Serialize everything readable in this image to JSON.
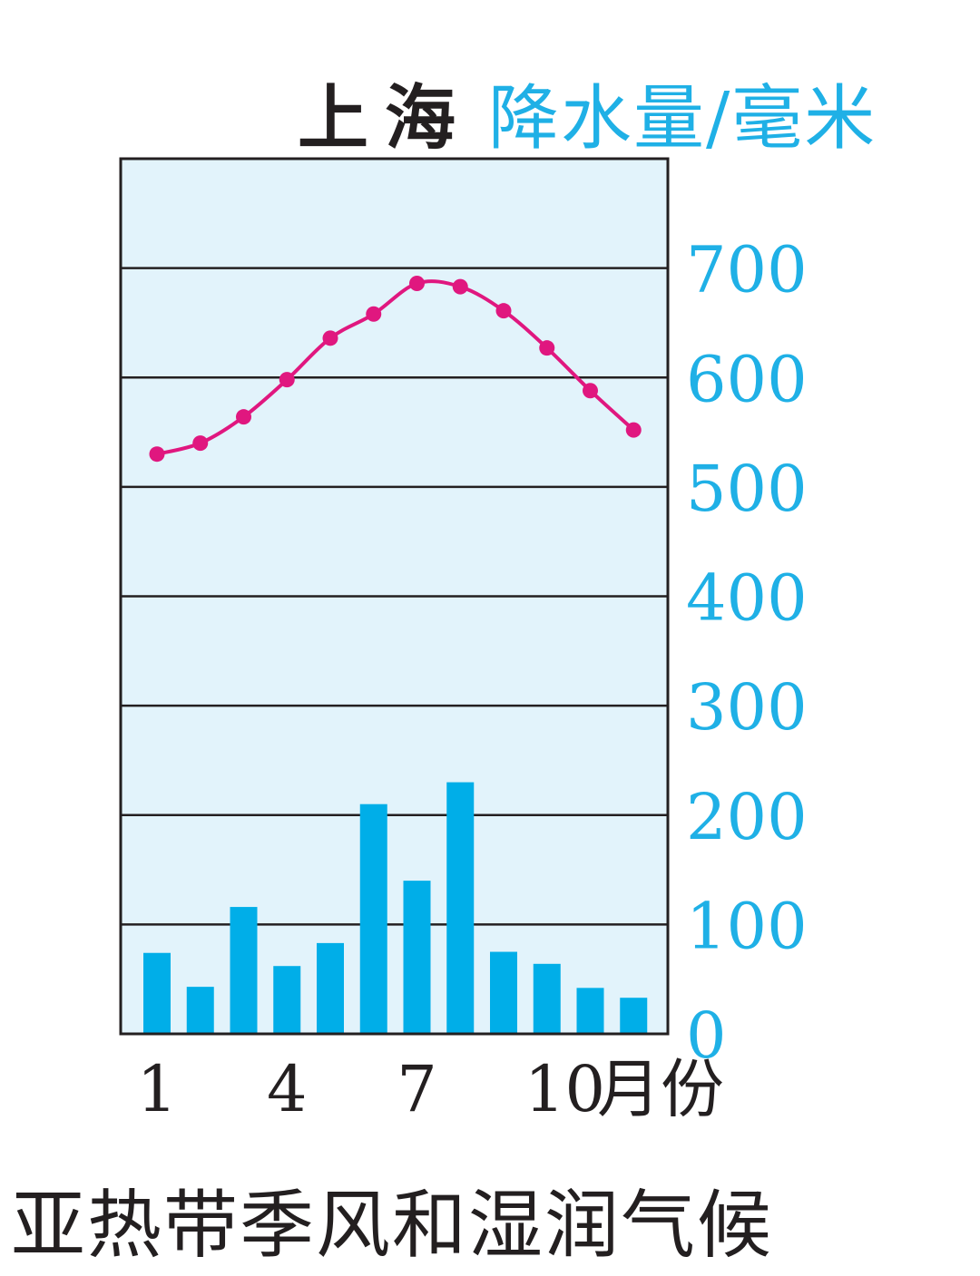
{
  "header": {
    "city": "上海",
    "unit_label": "降水量/毫米"
  },
  "caption": "亚热带季风和湿润气候",
  "colors": {
    "background": "#e2f3fb",
    "bar": "#00aee8",
    "line": "#e0177f",
    "axis_text": "#1fb0e6",
    "text": "#231f20",
    "grid": "#231f20"
  },
  "chart_data": {
    "type": "bar",
    "categories": [
      "1",
      "2",
      "3",
      "4",
      "5",
      "6",
      "7",
      "8",
      "9",
      "10",
      "11",
      "12"
    ],
    "x_tick_labels": [
      "1",
      "4",
      "7",
      "10"
    ],
    "xlabel": "月份",
    "ylabel": "降水量/毫米",
    "ylim": [
      0,
      800
    ],
    "yticks": [
      0,
      100,
      200,
      300,
      400,
      500,
      600,
      700
    ],
    "y_axis_position": "right",
    "grid": true,
    "series": [
      {
        "type": "bar",
        "values": [
          74,
          43,
          116,
          62,
          83,
          210,
          140,
          230,
          75,
          64,
          42,
          33
        ]
      },
      {
        "type": "line",
        "values": [
          530,
          540,
          564,
          598,
          636,
          658,
          686,
          683,
          661,
          627,
          588,
          552
        ]
      }
    ]
  }
}
